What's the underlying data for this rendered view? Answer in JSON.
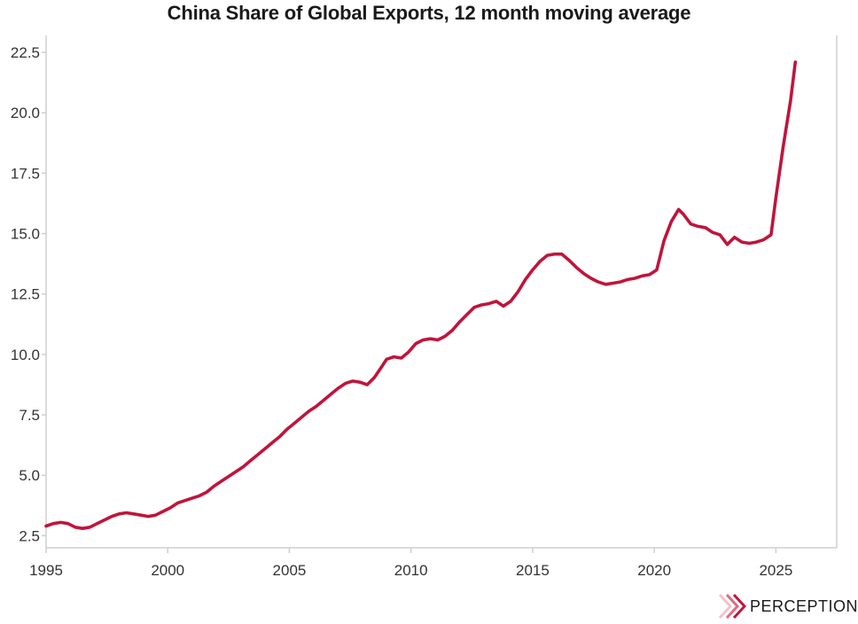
{
  "chart_data": {
    "type": "line",
    "title": "China Share of Global Exports, 12 month moving average",
    "xlabel": "",
    "ylabel": "",
    "xlim": [
      1995,
      2027.5
    ],
    "ylim": [
      2,
      23.2
    ],
    "grid": false,
    "x_ticks": [
      1995,
      2000,
      2005,
      2010,
      2015,
      2020,
      2025
    ],
    "x_tick_labels": [
      "1995",
      "2000",
      "2005",
      "2010",
      "2015",
      "2020",
      "2025"
    ],
    "y_ticks": [
      2.5,
      5.0,
      7.5,
      10.0,
      12.5,
      15.0,
      17.5,
      20.0,
      22.5
    ],
    "y_tick_labels": [
      "2.5",
      "5.0",
      "7.5",
      "10.0",
      "12.5",
      "15.0",
      "17.5",
      "20.0",
      "22.5"
    ],
    "series": [
      {
        "name": "China share of global exports",
        "color": "#c0143c",
        "x": [
          1995.0,
          1995.3,
          1995.6,
          1995.9,
          1996.2,
          1996.5,
          1996.8,
          1997.1,
          1997.4,
          1997.7,
          1998.0,
          1998.3,
          1998.6,
          1998.9,
          1999.2,
          1999.5,
          1999.8,
          2000.1,
          2000.4,
          2000.7,
          2001.0,
          2001.3,
          2001.6,
          2001.9,
          2002.2,
          2002.5,
          2002.8,
          2003.1,
          2003.4,
          2003.7,
          2004.0,
          2004.3,
          2004.6,
          2004.9,
          2005.2,
          2005.5,
          2005.8,
          2006.1,
          2006.4,
          2006.7,
          2007.0,
          2007.3,
          2007.6,
          2007.9,
          2008.2,
          2008.5,
          2008.8,
          2009.0,
          2009.3,
          2009.6,
          2009.9,
          2010.2,
          2010.5,
          2010.8,
          2011.1,
          2011.4,
          2011.7,
          2012.0,
          2012.3,
          2012.6,
          2012.9,
          2013.2,
          2013.5,
          2013.8,
          2014.1,
          2014.4,
          2014.7,
          2015.0,
          2015.3,
          2015.6,
          2015.9,
          2016.2,
          2016.5,
          2016.8,
          2017.1,
          2017.4,
          2017.7,
          2018.0,
          2018.3,
          2018.6,
          2018.9,
          2019.2,
          2019.5,
          2019.8,
          2020.1,
          2020.4,
          2020.7,
          2021.0,
          2021.2,
          2021.5,
          2021.8,
          2022.1,
          2022.4,
          2022.7,
          2023.0,
          2023.3,
          2023.6,
          2023.9,
          2024.2,
          2024.5,
          2024.8,
          2025.0,
          2025.3,
          2025.6,
          2025.8
        ],
        "values": [
          2.9,
          3.0,
          3.05,
          3.0,
          2.85,
          2.8,
          2.85,
          3.0,
          3.15,
          3.3,
          3.4,
          3.45,
          3.4,
          3.35,
          3.3,
          3.35,
          3.5,
          3.65,
          3.85,
          3.95,
          4.05,
          4.15,
          4.3,
          4.55,
          4.75,
          4.95,
          5.15,
          5.35,
          5.6,
          5.85,
          6.1,
          6.35,
          6.6,
          6.9,
          7.15,
          7.4,
          7.65,
          7.85,
          8.1,
          8.35,
          8.6,
          8.8,
          8.9,
          8.85,
          8.75,
          9.05,
          9.5,
          9.8,
          9.9,
          9.85,
          10.1,
          10.45,
          10.6,
          10.65,
          10.6,
          10.75,
          11.0,
          11.35,
          11.65,
          11.95,
          12.05,
          12.1,
          12.2,
          12.0,
          12.2,
          12.6,
          13.1,
          13.5,
          13.85,
          14.1,
          14.15,
          14.15,
          13.9,
          13.6,
          13.35,
          13.15,
          13.0,
          12.9,
          12.95,
          13.0,
          13.1,
          13.15,
          13.25,
          13.3,
          13.5,
          14.7,
          15.5,
          16.0,
          15.8,
          15.4,
          15.3,
          15.25,
          15.05,
          14.95,
          14.55,
          14.85,
          14.65,
          14.6,
          14.65,
          14.75,
          14.95,
          16.5,
          18.6,
          20.5,
          22.1
        ]
      }
    ]
  },
  "brand": {
    "logo_text": "PERCEPTION",
    "accent_color": "#c0143c"
  }
}
